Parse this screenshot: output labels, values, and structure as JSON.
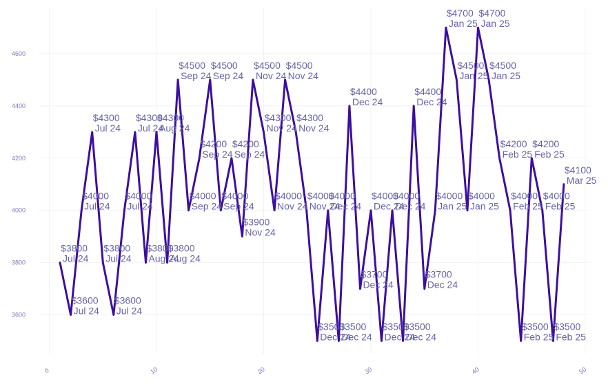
{
  "chart_data": {
    "type": "line",
    "title": "",
    "xlabel": "",
    "ylabel": "",
    "xlim": [
      0,
      50
    ],
    "ylim": [
      3500,
      4700
    ],
    "x_ticks": [
      0,
      10,
      20,
      30,
      40,
      50
    ],
    "y_ticks": [
      3600,
      3800,
      4000,
      4200,
      4400,
      4600
    ],
    "grid": true,
    "legend": "none",
    "line_color": "#3c0fa0",
    "label_color": "#6664a8",
    "tick_color": "#7a77b8",
    "series": [
      {
        "points": [
          {
            "x": 1,
            "y": 3800,
            "price": "$3800",
            "month": "Jul 24"
          },
          {
            "x": 2,
            "y": 3600,
            "price": "$3600",
            "month": "Jul 24"
          },
          {
            "x": 3,
            "y": 4000,
            "price": "$4000",
            "month": "Jul 24"
          },
          {
            "x": 4,
            "y": 4300,
            "price": "$4300",
            "month": "Jul 24"
          },
          {
            "x": 5,
            "y": 3800,
            "price": "$3800",
            "month": "Jul 24"
          },
          {
            "x": 6,
            "y": 3600,
            "price": "$3600",
            "month": "Jul 24"
          },
          {
            "x": 7,
            "y": 4000,
            "price": "$4000",
            "month": "Jul 24"
          },
          {
            "x": 8,
            "y": 4300,
            "price": "$4300",
            "month": "Jul 24"
          },
          {
            "x": 9,
            "y": 3800,
            "price": "$3800",
            "month": "Aug 24"
          },
          {
            "x": 10,
            "y": 4300,
            "price": "$4300",
            "month": "Aug 24"
          },
          {
            "x": 11,
            "y": 3800,
            "price": "$3800",
            "month": "Aug 24"
          },
          {
            "x": 12,
            "y": 4500,
            "price": "$4500",
            "month": "Sep 24"
          },
          {
            "x": 13,
            "y": 4000,
            "price": "$4000",
            "month": "Sep 24"
          },
          {
            "x": 14,
            "y": 4200,
            "price": "$4200",
            "month": "Sep 24"
          },
          {
            "x": 15,
            "y": 4500,
            "price": "$4500",
            "month": "Sep 24"
          },
          {
            "x": 16,
            "y": 4000,
            "price": "$4000",
            "month": "Sep 24"
          },
          {
            "x": 17,
            "y": 4200,
            "price": "$4200",
            "month": "Sep 24"
          },
          {
            "x": 18,
            "y": 3900,
            "price": "$3900",
            "month": "Nov 24"
          },
          {
            "x": 19,
            "y": 4500,
            "price": "$4500",
            "month": "Nov 24"
          },
          {
            "x": 20,
            "y": 4300,
            "price": "$4300",
            "month": "Nov 24"
          },
          {
            "x": 21,
            "y": 4000,
            "price": "$4000",
            "month": "Nov 24"
          },
          {
            "x": 22,
            "y": 4500,
            "price": "$4500",
            "month": "Nov 24"
          },
          {
            "x": 23,
            "y": 4300,
            "price": "$4300",
            "month": "Nov 24"
          },
          {
            "x": 24,
            "y": 4000,
            "price": "$4000",
            "month": "Nov 24"
          },
          {
            "x": 25,
            "y": 3500,
            "price": "$3500",
            "month": "Dec 24"
          },
          {
            "x": 26,
            "y": 4000,
            "price": "$4000",
            "month": "Dec 24"
          },
          {
            "x": 27,
            "y": 3500,
            "price": "$3500",
            "month": "Dec 24"
          },
          {
            "x": 28,
            "y": 4400,
            "price": "$4400",
            "month": "Dec 24"
          },
          {
            "x": 29,
            "y": 3700,
            "price": "$3700",
            "month": "Dec 24"
          },
          {
            "x": 30,
            "y": 4000,
            "price": "$4000",
            "month": "Dec 24"
          },
          {
            "x": 31,
            "y": 3500,
            "price": "$3500",
            "month": "Dec 24"
          },
          {
            "x": 32,
            "y": 4000,
            "price": "$4000",
            "month": "Dec 24"
          },
          {
            "x": 33,
            "y": 3500,
            "price": "$3500",
            "month": "Dec 24"
          },
          {
            "x": 34,
            "y": 4400,
            "price": "$4400",
            "month": "Dec 24"
          },
          {
            "x": 35,
            "y": 3700,
            "price": "$3700",
            "month": "Dec 24"
          },
          {
            "x": 36,
            "y": 4000,
            "price": "$4000",
            "month": "Jan 25"
          },
          {
            "x": 37,
            "y": 4700,
            "price": "$4700",
            "month": "Jan 25"
          },
          {
            "x": 38,
            "y": 4500,
            "price": "$4500",
            "month": "Jan 25"
          },
          {
            "x": 39,
            "y": 4000,
            "price": "$4000",
            "month": "Jan 25"
          },
          {
            "x": 40,
            "y": 4700,
            "price": "$4700",
            "month": "Jan 25"
          },
          {
            "x": 41,
            "y": 4500,
            "price": "$4500",
            "month": "Jan 25"
          },
          {
            "x": 42,
            "y": 4200,
            "price": "$4200",
            "month": "Feb 25"
          },
          {
            "x": 43,
            "y": 4000,
            "price": "$4000",
            "month": "Feb 25"
          },
          {
            "x": 44,
            "y": 3500,
            "price": "$3500",
            "month": "Feb 25"
          },
          {
            "x": 45,
            "y": 4200,
            "price": "$4200",
            "month": "Feb 25"
          },
          {
            "x": 46,
            "y": 4000,
            "price": "$4000",
            "month": "Feb 25"
          },
          {
            "x": 47,
            "y": 3500,
            "price": "$3500",
            "month": "Feb 25"
          },
          {
            "x": 48,
            "y": 4100,
            "price": "$4100",
            "month": "Mar 25"
          }
        ]
      }
    ]
  }
}
